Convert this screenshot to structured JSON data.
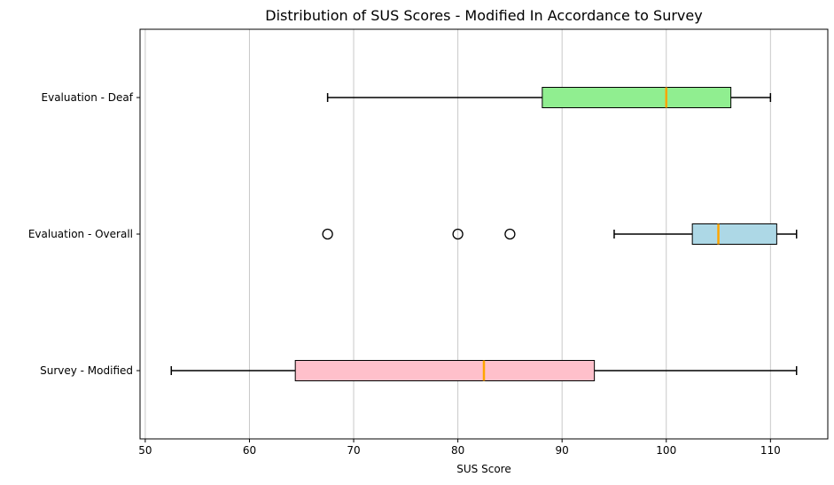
{
  "chart_data": {
    "type": "boxplot",
    "orientation": "horizontal",
    "title": "Distribution of SUS Scores - Modified In Accordance to Survey",
    "xlabel": "SUS Score",
    "ylabel": "",
    "xlim": [
      49.5,
      115.5
    ],
    "xticks": [
      50,
      60,
      70,
      80,
      90,
      100,
      110
    ],
    "grid": "vertical",
    "series": [
      {
        "name": "Survey - Modified",
        "color": "#ffc0cb",
        "whislo": 52.5,
        "q1": 64.4,
        "median": 82.5,
        "q3": 93.1,
        "whishi": 112.5,
        "outliers": []
      },
      {
        "name": "Evaluation - Overall",
        "color": "#add8e6",
        "whislo": 95,
        "q1": 102.5,
        "median": 105,
        "q3": 110.6,
        "whishi": 112.5,
        "outliers": [
          67.5,
          80,
          85
        ]
      },
      {
        "name": "Evaluation - Deaf",
        "color": "#90ee90",
        "whislo": 67.5,
        "q1": 88.1,
        "median": 100,
        "q3": 106.2,
        "whishi": 110,
        "outliers": []
      }
    ],
    "median_color": "#ffa500"
  }
}
